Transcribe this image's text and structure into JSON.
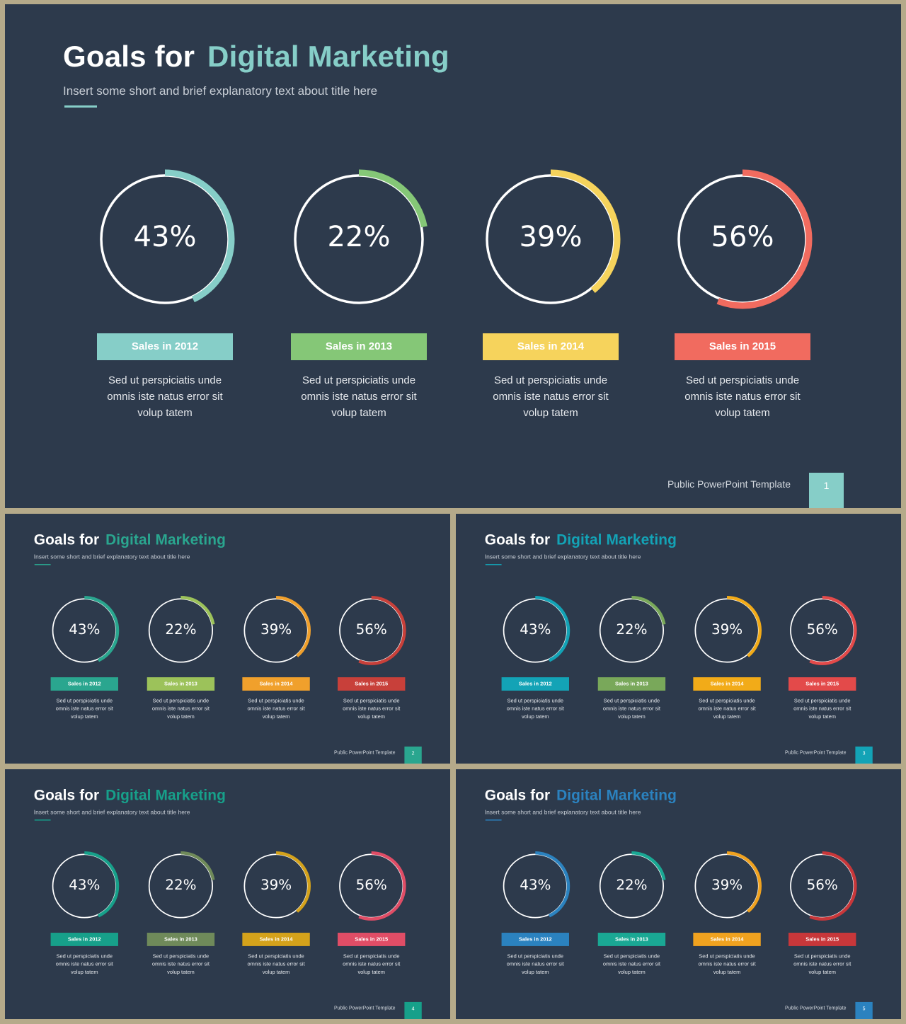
{
  "slides": [
    {
      "title_main": "Goals for",
      "title_accent": "Digital Marketing",
      "subtitle": "Insert some short and brief explanatory text about title here",
      "accent_color": "#86cec8",
      "underline_color": "#86cec8",
      "footer": "Public PowerPoint Template",
      "page": "1",
      "page_color": "#86cec8",
      "goals": [
        {
          "percent": 43,
          "percent_label": "43%",
          "label": "Sales in 2012",
          "color": "#86cec8",
          "desc": [
            "Sed ut perspiciatis unde",
            "omnis iste natus error sit",
            "volup tatem"
          ]
        },
        {
          "percent": 22,
          "percent_label": "22%",
          "label": "Sales in 2013",
          "color": "#85c777",
          "desc": [
            "Sed ut perspiciatis unde",
            "omnis iste natus error sit",
            "volup tatem"
          ]
        },
        {
          "percent": 39,
          "percent_label": "39%",
          "label": "Sales in 2014",
          "color": "#f6d35c",
          "desc": [
            "Sed ut perspiciatis unde",
            "omnis iste natus error sit",
            "volup tatem"
          ]
        },
        {
          "percent": 56,
          "percent_label": "56%",
          "label": "Sales in 2015",
          "color": "#f16b5f",
          "desc": [
            "Sed ut perspiciatis unde",
            "omnis iste natus error sit",
            "volup tatem"
          ]
        }
      ]
    },
    {
      "title_main": "Goals for",
      "title_accent": "Digital Marketing",
      "subtitle": "Insert some short and brief explanatory text about title here",
      "accent_color": "#2aa68f",
      "underline_color": "#2aa68f",
      "footer": "Public PowerPoint Template",
      "page": "2",
      "page_color": "#2aa68f",
      "goals": [
        {
          "percent": 43,
          "percent_label": "43%",
          "label": "Sales in 2012",
          "color": "#2aa68f",
          "desc": [
            "Sed ut perspiciatis unde",
            "omnis iste natus error sit",
            "volup tatem"
          ]
        },
        {
          "percent": 22,
          "percent_label": "22%",
          "label": "Sales in 2013",
          "color": "#9cc25a",
          "desc": [
            "Sed ut perspiciatis unde",
            "omnis iste natus error sit",
            "volup tatem"
          ]
        },
        {
          "percent": 39,
          "percent_label": "39%",
          "label": "Sales in 2014",
          "color": "#f0a02c",
          "desc": [
            "Sed ut perspiciatis unde",
            "omnis iste natus error sit",
            "volup tatem"
          ]
        },
        {
          "percent": 56,
          "percent_label": "56%",
          "label": "Sales in 2015",
          "color": "#c8403a",
          "desc": [
            "Sed ut perspiciatis unde",
            "omnis iste natus error sit",
            "volup tatem"
          ]
        }
      ]
    },
    {
      "title_main": "Goals for",
      "title_accent": "Digital Marketing",
      "subtitle": "Insert some short and brief explanatory text about title here",
      "accent_color": "#13a3b6",
      "underline_color": "#13a3b6",
      "footer": "Public PowerPoint Template",
      "page": "3",
      "page_color": "#13a3b6",
      "goals": [
        {
          "percent": 43,
          "percent_label": "43%",
          "label": "Sales in 2012",
          "color": "#13a3b6",
          "desc": [
            "Sed ut perspiciatis unde",
            "omnis iste natus error sit",
            "volup tatem"
          ]
        },
        {
          "percent": 22,
          "percent_label": "22%",
          "label": "Sales in 2013",
          "color": "#79a85a",
          "desc": [
            "Sed ut perspiciatis unde",
            "omnis iste natus error sit",
            "volup tatem"
          ]
        },
        {
          "percent": 39,
          "percent_label": "39%",
          "label": "Sales in 2014",
          "color": "#f2ab18",
          "desc": [
            "Sed ut perspiciatis unde",
            "omnis iste natus error sit",
            "volup tatem"
          ]
        },
        {
          "percent": 56,
          "percent_label": "56%",
          "label": "Sales in 2015",
          "color": "#e34a4a",
          "desc": [
            "Sed ut perspiciatis unde",
            "omnis iste natus error sit",
            "volup tatem"
          ]
        }
      ]
    },
    {
      "title_main": "Goals for",
      "title_accent": "Digital Marketing",
      "subtitle": "Insert some short and brief explanatory text about title here",
      "accent_color": "#17a08a",
      "underline_color": "#17a08a",
      "footer": "Public PowerPoint Template",
      "page": "4",
      "page_color": "#17a08a",
      "goals": [
        {
          "percent": 43,
          "percent_label": "43%",
          "label": "Sales in 2012",
          "color": "#17a08a",
          "desc": [
            "Sed ut perspiciatis unde",
            "omnis iste natus error sit",
            "volup tatem"
          ]
        },
        {
          "percent": 22,
          "percent_label": "22%",
          "label": "Sales in 2013",
          "color": "#6f8a5a",
          "desc": [
            "Sed ut perspiciatis unde",
            "omnis iste natus error sit",
            "volup tatem"
          ]
        },
        {
          "percent": 39,
          "percent_label": "39%",
          "label": "Sales in 2014",
          "color": "#d4a21b",
          "desc": [
            "Sed ut perspiciatis unde",
            "omnis iste natus error sit",
            "volup tatem"
          ]
        },
        {
          "percent": 56,
          "percent_label": "56%",
          "label": "Sales in 2015",
          "color": "#e04d66",
          "desc": [
            "Sed ut perspiciatis unde",
            "omnis iste natus error sit",
            "volup tatem"
          ]
        }
      ]
    },
    {
      "title_main": "Goals for",
      "title_accent": "Digital Marketing",
      "subtitle": "Insert some short and brief explanatory text about title here",
      "accent_color": "#2b82bf",
      "underline_color": "#2b82bf",
      "footer": "Public PowerPoint Template",
      "page": "5",
      "page_color": "#2b82bf",
      "goals": [
        {
          "percent": 43,
          "percent_label": "43%",
          "label": "Sales in 2012",
          "color": "#2b82bf",
          "desc": [
            "Sed ut perspiciatis unde",
            "omnis iste natus error sit",
            "volup tatem"
          ]
        },
        {
          "percent": 22,
          "percent_label": "22%",
          "label": "Sales in 2013",
          "color": "#1aa894",
          "desc": [
            "Sed ut perspiciatis unde",
            "omnis iste natus error sit",
            "volup tatem"
          ]
        },
        {
          "percent": 39,
          "percent_label": "39%",
          "label": "Sales in 2014",
          "color": "#f0a21f",
          "desc": [
            "Sed ut perspiciatis unde",
            "omnis iste natus error sit",
            "volup tatem"
          ]
        },
        {
          "percent": 56,
          "percent_label": "56%",
          "label": "Sales in 2015",
          "color": "#c8373a",
          "desc": [
            "Sed ut perspiciatis unde",
            "omnis iste natus error sit",
            "volup tatem"
          ]
        }
      ]
    }
  ]
}
